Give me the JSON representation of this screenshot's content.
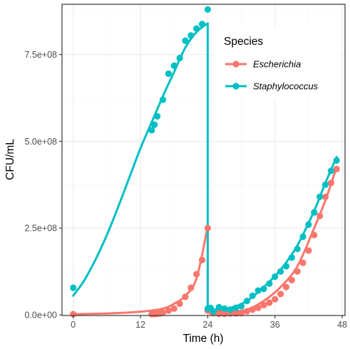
{
  "chart_data": {
    "type": "line",
    "xlabel": "Time (h)",
    "ylabel": "CFU/mL",
    "xlim": [
      -2,
      48.5
    ],
    "ylim": [
      -2000000.0,
      895000000.0
    ],
    "x_ticks": [
      0,
      12,
      24,
      36,
      48
    ],
    "y_ticks": [
      0,
      250000000,
      500000000,
      750000000
    ],
    "x_tick_labels": [
      "0",
      "12",
      "24",
      "36",
      "48"
    ],
    "y_tick_labels": [
      "0.0e+00",
      "2.5e+08",
      "5.0e+08",
      "7.5e+08"
    ],
    "grid": true,
    "legend": {
      "title": "Species",
      "placement": "top-right (inside)"
    },
    "series": [
      {
        "name": "Escherichia",
        "color": "#F8766D",
        "points": [
          [
            0,
            2000000.0
          ],
          [
            14,
            2000000.0
          ],
          [
            14.5,
            2000000.0
          ],
          [
            15,
            3000000.0
          ],
          [
            15.5,
            4000000.0
          ],
          [
            16,
            6000000.0
          ],
          [
            17,
            12000000.0
          ],
          [
            18,
            18000000.0
          ],
          [
            19,
            32000000.0
          ],
          [
            20,
            52000000.0
          ],
          [
            21,
            78000000.0
          ],
          [
            22,
            117000000.0
          ],
          [
            23,
            158000000.0
          ],
          [
            24,
            250000000.0
          ],
          [
            24,
            12000000.0
          ],
          [
            24.5,
            10000000.0
          ],
          [
            25,
            5000000.0
          ],
          [
            26,
            3000000.0
          ],
          [
            27,
            3000000.0
          ],
          [
            28,
            4000000.0
          ],
          [
            29,
            4000000.0
          ],
          [
            30,
            5000000.0
          ],
          [
            31,
            10000000.0
          ],
          [
            32,
            15000000.0
          ],
          [
            33,
            20000000.0
          ],
          [
            34,
            28000000.0
          ],
          [
            35,
            35000000.0
          ],
          [
            36,
            45000000.0
          ],
          [
            37,
            60000000.0
          ],
          [
            38,
            80000000.0
          ],
          [
            39,
            100000000.0
          ],
          [
            40,
            125000000.0
          ],
          [
            41,
            150000000.0
          ],
          [
            42,
            185000000.0
          ],
          [
            43,
            230000000.0
          ],
          [
            44,
            285000000.0
          ],
          [
            45,
            340000000.0
          ],
          [
            46,
            380000000.0
          ],
          [
            47,
            420000000.0
          ]
        ],
        "fit": [
          [
            0,
            2000000.0
          ],
          [
            6,
            4000000.0
          ],
          [
            12,
            9000000.0
          ],
          [
            16,
            18000000.0
          ],
          [
            18,
            32000000.0
          ],
          [
            20,
            55000000.0
          ],
          [
            22,
            105000000.0
          ],
          [
            24,
            255000000.0
          ],
          [
            25,
            12000000.0
          ],
          [
            28,
            10000000.0
          ],
          [
            31,
            15000000.0
          ],
          [
            34,
            40000000.0
          ],
          [
            37,
            80000000.0
          ],
          [
            40,
            140000000.0
          ],
          [
            43,
            250000000.0
          ],
          [
            45,
            330000000.0
          ],
          [
            47,
            425000000.0
          ]
        ]
      },
      {
        "name": "Staphylococcus",
        "color": "#00BFC4",
        "points": [
          [
            0,
            78000000.0
          ],
          [
            14,
            532000000.0
          ],
          [
            14.5,
            548000000.0
          ],
          [
            15,
            572000000.0
          ],
          [
            16,
            620000000.0
          ],
          [
            17,
            695000000.0
          ],
          [
            18,
            718000000.0
          ],
          [
            19,
            740000000.0
          ],
          [
            20,
            790000000.0
          ],
          [
            21,
            805000000.0
          ],
          [
            22,
            825000000.0
          ],
          [
            23,
            838000000.0
          ],
          [
            24,
            880000000.0
          ],
          [
            24,
            18000000.0
          ],
          [
            24.5,
            20000000.0
          ],
          [
            25,
            10000000.0
          ],
          [
            26,
            22000000.0
          ],
          [
            27,
            18000000.0
          ],
          [
            28,
            15000000.0
          ],
          [
            29,
            20000000.0
          ],
          [
            30,
            25000000.0
          ],
          [
            31,
            40000000.0
          ],
          [
            32,
            55000000.0
          ],
          [
            33,
            70000000.0
          ],
          [
            34,
            75000000.0
          ],
          [
            35,
            90000000.0
          ],
          [
            36,
            110000000.0
          ],
          [
            37,
            125000000.0
          ],
          [
            38,
            140000000.0
          ],
          [
            39,
            165000000.0
          ],
          [
            40,
            190000000.0
          ],
          [
            41,
            225000000.0
          ],
          [
            42,
            260000000.0
          ],
          [
            43,
            295000000.0
          ],
          [
            44,
            340000000.0
          ],
          [
            45,
            375000000.0
          ],
          [
            46,
            415000000.0
          ],
          [
            47,
            445000000.0
          ]
        ],
        "fit": [
          [
            0,
            55000000.0
          ],
          [
            2,
            100000000.0
          ],
          [
            4,
            160000000.0
          ],
          [
            6,
            230000000.0
          ],
          [
            8,
            310000000.0
          ],
          [
            10,
            395000000.0
          ],
          [
            12,
            480000000.0
          ],
          [
            14,
            555000000.0
          ],
          [
            16,
            630000000.0
          ],
          [
            18,
            700000000.0
          ],
          [
            20,
            770000000.0
          ],
          [
            22,
            815000000.0
          ],
          [
            24,
            840000000.0
          ],
          [
            25,
            15000000.0
          ],
          [
            28,
            20000000.0
          ],
          [
            31,
            40000000.0
          ],
          [
            34,
            80000000.0
          ],
          [
            37,
            130000000.0
          ],
          [
            40,
            200000000.0
          ],
          [
            43,
            300000000.0
          ],
          [
            45,
            380000000.0
          ],
          [
            47,
            455000000.0
          ]
        ]
      }
    ]
  }
}
